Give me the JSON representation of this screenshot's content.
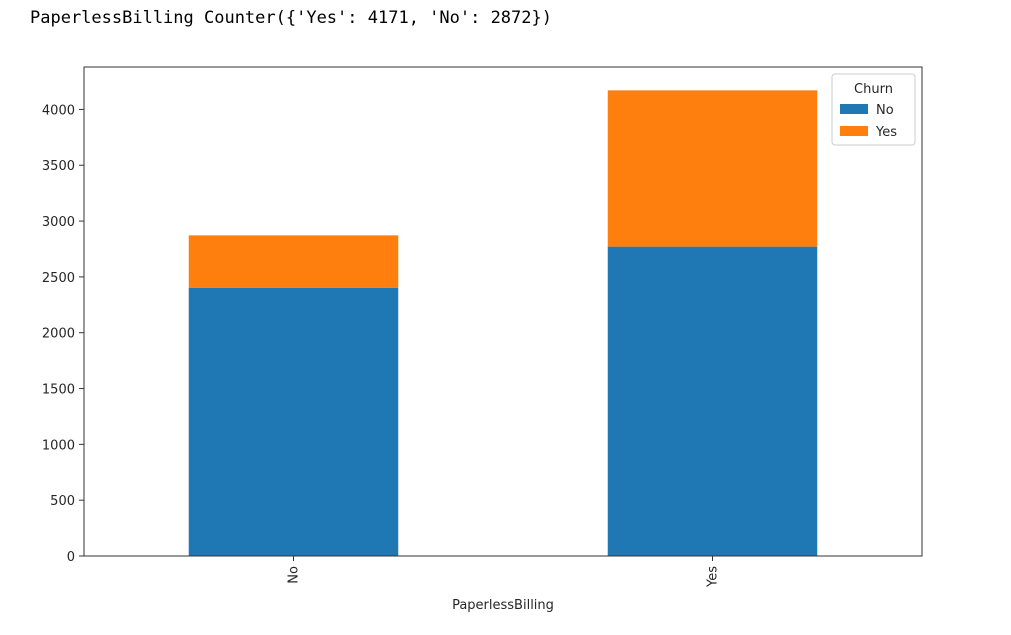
{
  "output": {
    "text": "PaperlessBilling Counter({'Yes': 4171, 'No': 2872})"
  },
  "chart_data": {
    "type": "bar",
    "stacked": true,
    "categories": [
      "No",
      "Yes"
    ],
    "series": [
      {
        "name": "No",
        "values": [
          2403,
          2771
        ],
        "color": "#1f77b4"
      },
      {
        "name": "Yes",
        "values": [
          469,
          1400
        ],
        "color": "#ff7f0e"
      }
    ],
    "xlabel": "PaperlessBilling",
    "ylabel": "",
    "ylim": [
      0,
      4380
    ],
    "yticks": [
      0,
      500,
      1000,
      1500,
      2000,
      2500,
      3000,
      3500,
      4000
    ],
    "legend": {
      "title": "Churn",
      "position": "top-right"
    },
    "grid": false
  }
}
